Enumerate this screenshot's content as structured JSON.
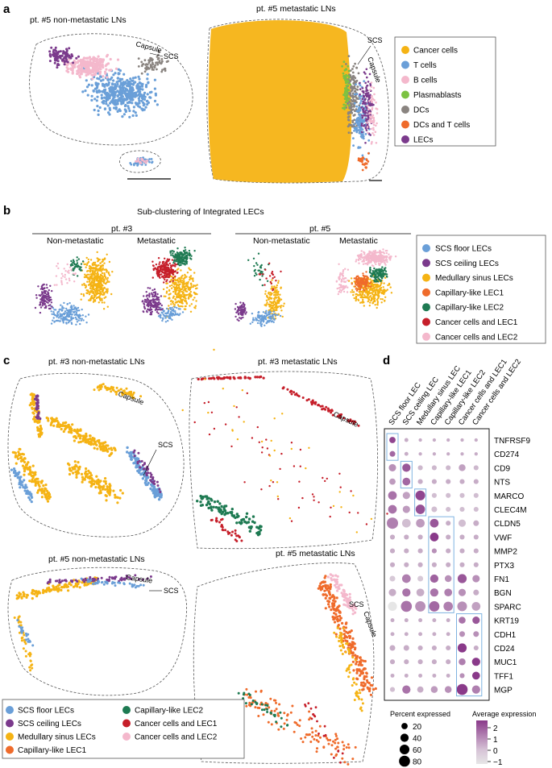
{
  "panels": {
    "a": {
      "label": "a",
      "title_left": "pt. #5 non-metastatic LNs",
      "title_right": "pt. #5 metastatic LNs",
      "capsule": "Capsule",
      "scs": "SCS",
      "legend": [
        {
          "name": "Cancer cells",
          "color": "#f5b314"
        },
        {
          "name": "T cells",
          "color": "#6a9fd8"
        },
        {
          "name": "B cells",
          "color": "#f4b8cc"
        },
        {
          "name": "Plasmablasts",
          "color": "#7cc242"
        },
        {
          "name": "DCs",
          "color": "#8a8480"
        },
        {
          "name": "DCs and T cells",
          "color": "#ef6b2b"
        },
        {
          "name": "LECs",
          "color": "#7b3a8c"
        }
      ]
    },
    "b": {
      "label": "b",
      "title": "Sub-clustering of Integrated LECs",
      "pt3": "pt. #3",
      "pt5": "pt. #5",
      "nonmet": "Non-metastatic",
      "met": "Metastatic",
      "legend": [
        {
          "name": "SCS floor LECs",
          "color": "#6a9fd8"
        },
        {
          "name": "SCS ceiling LECs",
          "color": "#7b3a8c"
        },
        {
          "name": "Medullary sinus LECs",
          "color": "#f5b314"
        },
        {
          "name": "Capillary-like LEC1",
          "color": "#ef6b2b"
        },
        {
          "name": "Capillary-like LEC2",
          "color": "#1e7a52"
        },
        {
          "name": "Cancer cells and LEC1",
          "color": "#c61f2a"
        },
        {
          "name": "Cancer cells and LEC2",
          "color": "#f4b8cc"
        }
      ]
    },
    "c": {
      "label": "c",
      "t1": "pt. #3 non-metastatic LNs",
      "t2": "pt. #3 metastatic LNs",
      "t3": "pt. #5 non-metastatic LNs",
      "t4": "pt. #5 metastatic LNs",
      "capsule": "Capsule",
      "scs": "SCS"
    },
    "d": {
      "label": "d",
      "size_title": "Percent expressed",
      "color_title": "Average expression",
      "size_ticks": [
        "20",
        "40",
        "60",
        "80"
      ],
      "color_ticks": [
        "2",
        "1",
        "0",
        "−1"
      ]
    }
  },
  "chart_data": {
    "type": "dotplot",
    "clusters": [
      "SCS floor LEC",
      "SCS ceiling LEC",
      "Medullary sinus LEC",
      "Capillary-like LEC1",
      "Capillary-like LEC2",
      "Cancer cells and LEC1",
      "Cancer cells and LEC2"
    ],
    "genes": [
      "TNFRSF9",
      "CD274",
      "CD9",
      "NTS",
      "MARCO",
      "CLEC4M",
      "CLDN5",
      "VWF",
      "MMP2",
      "PTX3",
      "FN1",
      "BGN",
      "SPARC",
      "KRT19",
      "CDH1",
      "CD24",
      "MUC1",
      "TFF1",
      "MGP"
    ],
    "percent_expressed": [
      [
        20,
        5,
        3,
        3,
        3,
        3,
        3
      ],
      [
        15,
        5,
        3,
        3,
        3,
        3,
        3
      ],
      [
        30,
        40,
        10,
        10,
        10,
        25,
        10
      ],
      [
        20,
        35,
        10,
        10,
        10,
        10,
        10
      ],
      [
        45,
        30,
        60,
        10,
        10,
        10,
        10
      ],
      [
        45,
        30,
        55,
        15,
        10,
        10,
        10
      ],
      [
        85,
        45,
        45,
        45,
        10,
        30,
        15
      ],
      [
        10,
        10,
        10,
        45,
        10,
        10,
        10
      ],
      [
        10,
        10,
        10,
        10,
        10,
        10,
        10
      ],
      [
        10,
        10,
        10,
        10,
        10,
        10,
        10
      ],
      [
        15,
        45,
        15,
        40,
        25,
        50,
        30
      ],
      [
        30,
        40,
        35,
        40,
        35,
        30,
        15
      ],
      [
        50,
        80,
        70,
        70,
        55,
        60,
        45
      ],
      [
        5,
        5,
        5,
        5,
        5,
        25,
        30
      ],
      [
        5,
        5,
        5,
        5,
        5,
        15,
        15
      ],
      [
        15,
        15,
        10,
        10,
        10,
        50,
        10
      ],
      [
        10,
        10,
        10,
        10,
        10,
        25,
        40
      ],
      [
        5,
        5,
        5,
        5,
        5,
        10,
        35
      ],
      [
        10,
        40,
        20,
        25,
        25,
        80,
        40
      ]
    ],
    "average_expression": [
      [
        1.8,
        0,
        0,
        0,
        0,
        0,
        0
      ],
      [
        1.2,
        0,
        0,
        0,
        0,
        0,
        0
      ],
      [
        0.5,
        1.5,
        -0.2,
        -0.2,
        -0.2,
        0.2,
        -0.2
      ],
      [
        0.3,
        1.2,
        0,
        0,
        0,
        0,
        0
      ],
      [
        1.0,
        0.2,
        1.8,
        -0.3,
        -0.3,
        -0.3,
        -0.3
      ],
      [
        1.0,
        0.3,
        1.6,
        -0.3,
        -0.3,
        -0.3,
        -0.3
      ],
      [
        0.8,
        -0.3,
        0.3,
        1.5,
        0,
        -0.3,
        0
      ],
      [
        0,
        0,
        0,
        2.0,
        0,
        0,
        0
      ],
      [
        0,
        0,
        0,
        0.5,
        0,
        0,
        0
      ],
      [
        0,
        0,
        0,
        0,
        0,
        0,
        0
      ],
      [
        -0.5,
        0.8,
        -0.5,
        1.3,
        0.5,
        1.5,
        0.5
      ],
      [
        0,
        1.0,
        0,
        1.0,
        0.8,
        0.5,
        0
      ],
      [
        -1.0,
        1.0,
        0.5,
        1.2,
        0.8,
        0.5,
        0.2
      ],
      [
        0,
        0,
        0,
        0,
        0,
        1.0,
        1.5
      ],
      [
        0,
        0,
        0,
        0,
        0,
        0.5,
        0.5
      ],
      [
        0,
        0,
        0,
        0,
        0,
        2.0,
        0
      ],
      [
        0,
        0,
        0,
        0,
        0,
        0.8,
        2.0
      ],
      [
        0,
        0,
        0,
        0,
        0,
        0.5,
        2.2
      ],
      [
        -0.3,
        1.0,
        0,
        0.3,
        0.5,
        2.0,
        0.8
      ]
    ],
    "size_legend": [
      20,
      40,
      60,
      80
    ],
    "color_range": [
      -1,
      2
    ]
  }
}
